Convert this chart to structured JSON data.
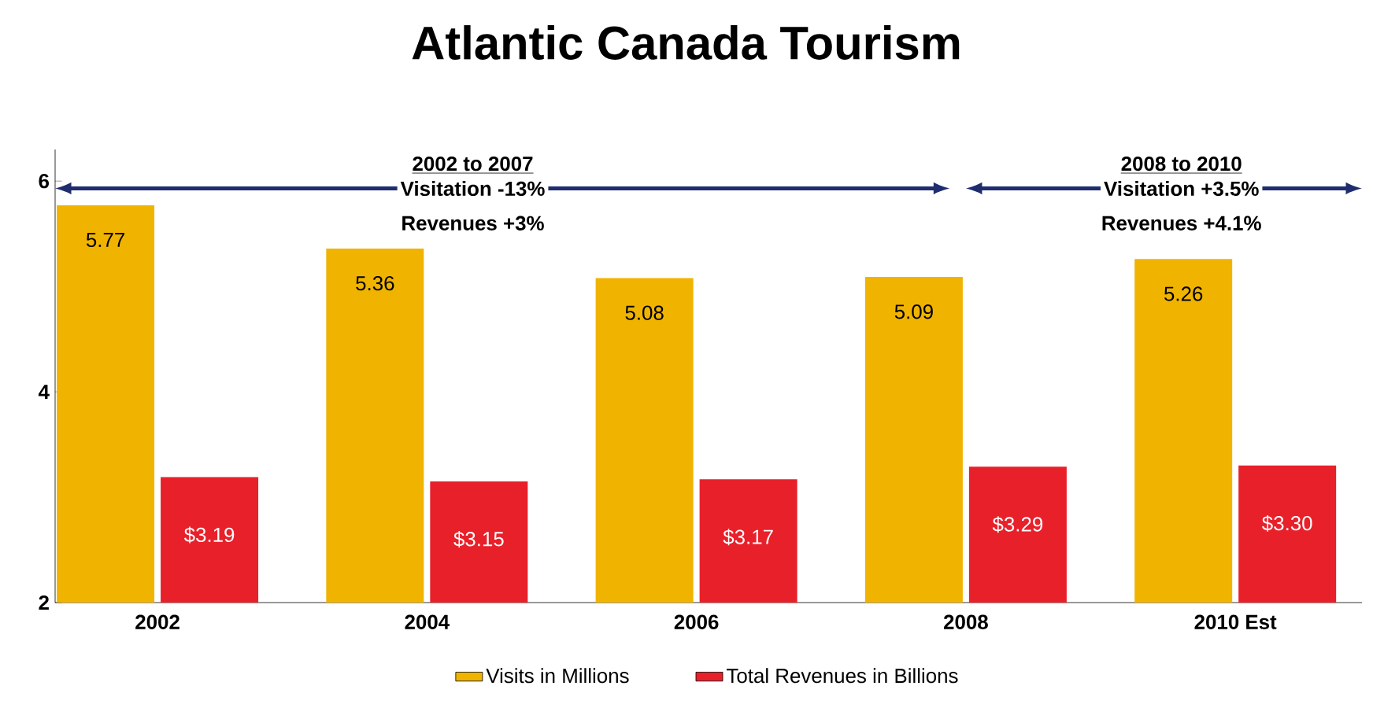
{
  "chart_data": {
    "type": "bar",
    "title": "Atlantic Canada Tourism",
    "categories": [
      "2002",
      "2004",
      "2006",
      "2008",
      "2010 Est"
    ],
    "series": [
      {
        "name": "Visits in Millions",
        "color": "#f0b400",
        "values": [
          5.77,
          5.36,
          5.08,
          5.09,
          5.26
        ],
        "value_labels": [
          "5.77",
          "5.36",
          "5.08",
          "5.09",
          "5.26"
        ]
      },
      {
        "name": "Total Revenues in Billions",
        "color": "#e8202a",
        "values": [
          3.19,
          3.15,
          3.17,
          3.29,
          3.3
        ],
        "value_labels": [
          "$3.19",
          "$3.15",
          "$3.17",
          "$3.29",
          "$3.30"
        ]
      }
    ],
    "ylim": [
      2,
      6.3
    ],
    "yticks": [
      2,
      4,
      6
    ],
    "grid": false,
    "legend": "bottom",
    "annotations": [
      "2002 to 2007",
      "Visitation  -13%",
      "Revenues  +3%",
      "2008 to 2010",
      "Visitation  +3.5%",
      "Revenues  +4.1%"
    ]
  }
}
